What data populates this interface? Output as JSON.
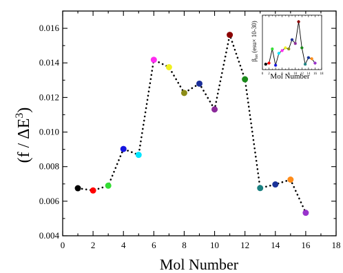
{
  "chart_data": [
    {
      "type": "scatter",
      "xlabel": "Mol Number",
      "ylabel_parts": {
        "pre": "(f / ",
        "delta": "ΔE",
        "sup": "3",
        "post": ")"
      },
      "xlim": [
        0,
        18
      ],
      "ylim": [
        0.004,
        0.017
      ],
      "xticks": [
        0,
        2,
        4,
        6,
        8,
        10,
        12,
        14,
        16,
        18
      ],
      "yticks": [
        0.004,
        0.006,
        0.008,
        0.01,
        0.012,
        0.014,
        0.016
      ],
      "ytick_labels": [
        "0.004",
        "0.006",
        "0.008",
        "0.010",
        "0.012",
        "0.014",
        "0.016"
      ],
      "line_style": "dotted",
      "points": [
        {
          "x": 1,
          "y": 0.00675,
          "color": "#000000"
        },
        {
          "x": 2,
          "y": 0.00662,
          "color": "#ff0000"
        },
        {
          "x": 3,
          "y": 0.0069,
          "color": "#33dd33"
        },
        {
          "x": 4,
          "y": 0.00902,
          "color": "#1515e0"
        },
        {
          "x": 5,
          "y": 0.00868,
          "color": "#00e5ff"
        },
        {
          "x": 6,
          "y": 0.01418,
          "color": "#ff2bf0"
        },
        {
          "x": 7,
          "y": 0.01375,
          "color": "#f0f020"
        },
        {
          "x": 8,
          "y": 0.01226,
          "color": "#8c8c17"
        },
        {
          "x": 9,
          "y": 0.0128,
          "color": "#1a2d99"
        },
        {
          "x": 10,
          "y": 0.01131,
          "color": "#8b2a9a"
        },
        {
          "x": 11,
          "y": 0.01562,
          "color": "#8b0000"
        },
        {
          "x": 12,
          "y": 0.01305,
          "color": "#1a8a1a"
        },
        {
          "x": 13,
          "y": 0.00676,
          "color": "#1a8080"
        },
        {
          "x": 14,
          "y": 0.00697,
          "color": "#1a3399"
        },
        {
          "x": 15,
          "y": 0.00725,
          "color": "#ff8c1a"
        },
        {
          "x": 16,
          "y": 0.00533,
          "color": "#9933cc"
        }
      ]
    },
    {
      "type": "line",
      "inset": true,
      "xlabel": "Mol Number",
      "ylabel": "β",
      "ylabel_sub": "tot",
      "ylabel_rest": " (esu× 10-30)",
      "xlim": [
        0,
        18
      ],
      "ylim": [
        0,
        100
      ],
      "xticks": [
        0,
        2,
        4,
        6,
        8,
        10,
        12,
        14,
        16,
        18
      ],
      "points": [
        {
          "x": 1,
          "y": 10,
          "color": "#000000"
        },
        {
          "x": 2,
          "y": 12,
          "color": "#ff0000"
        },
        {
          "x": 3,
          "y": 38,
          "color": "#33dd33"
        },
        {
          "x": 4,
          "y": 8,
          "color": "#1515e0"
        },
        {
          "x": 5,
          "y": 30,
          "color": "#00e5ff"
        },
        {
          "x": 6,
          "y": 35,
          "color": "#ff2bf0"
        },
        {
          "x": 7,
          "y": 40,
          "color": "#f0f020"
        },
        {
          "x": 8,
          "y": 38,
          "color": "#8c8c17"
        },
        {
          "x": 9,
          "y": 55,
          "color": "#1a2d99"
        },
        {
          "x": 10,
          "y": 48,
          "color": "#8b2a9a"
        },
        {
          "x": 11,
          "y": 88,
          "color": "#8b0000"
        },
        {
          "x": 12,
          "y": 40,
          "color": "#1a8a1a"
        },
        {
          "x": 13,
          "y": 10,
          "color": "#1a8080"
        },
        {
          "x": 14,
          "y": 22,
          "color": "#1a3399"
        },
        {
          "x": 15,
          "y": 20,
          "color": "#ff8c1a"
        },
        {
          "x": 16,
          "y": 12,
          "color": "#9933cc"
        }
      ]
    }
  ]
}
